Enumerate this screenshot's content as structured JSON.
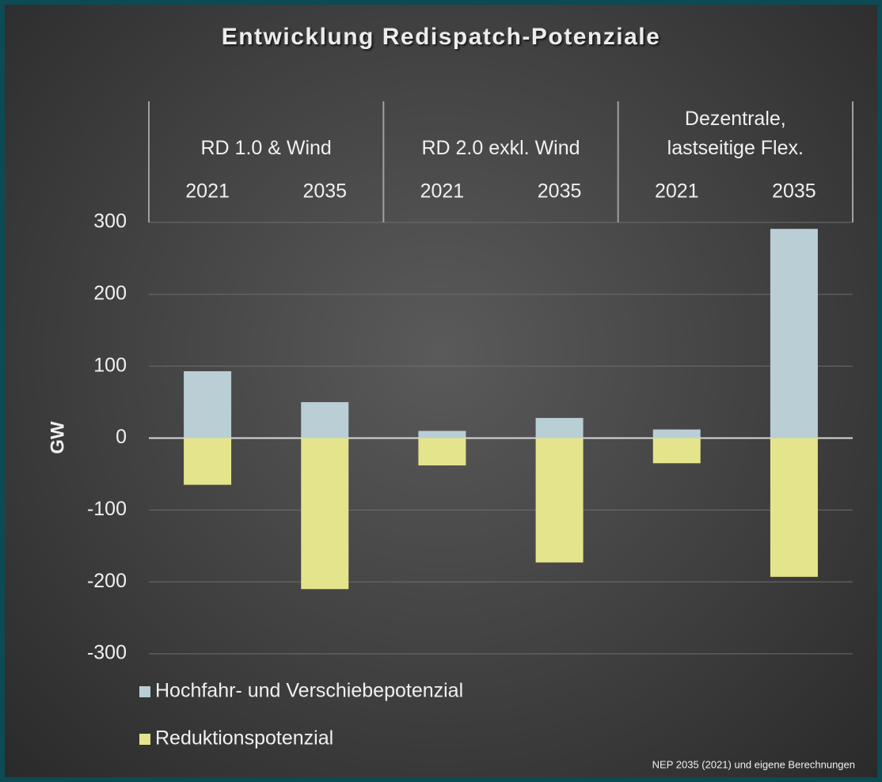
{
  "chart_data": {
    "type": "bar",
    "title": "Entwicklung Redispatch-Potenziale",
    "y_label": "GW",
    "groups": [
      "RD 1.0 & Wind",
      "RD 2.0 exkl. Wind",
      "Dezentrale,\nlastseitige Flex."
    ],
    "categories": [
      "2021",
      "2035",
      "2021",
      "2035",
      "2021",
      "2035"
    ],
    "series": [
      {
        "name": "Hochfahr- und Verschiebepotenzial",
        "color": "#b9cfd5",
        "values": [
          93,
          50,
          10,
          28,
          12,
          291
        ]
      },
      {
        "name": "Reduktionspotenzial",
        "color": "#e4e48c",
        "values": [
          -65,
          -210,
          -38,
          -173,
          -35,
          -193
        ]
      }
    ],
    "ylim": [
      -300,
      300
    ],
    "yticks": [
      -300,
      -200,
      -100,
      0,
      100,
      200,
      300
    ],
    "grid": true,
    "legend": "bottom-left",
    "source": "NEP 2035 (2021) und eigene Berechnungen"
  }
}
